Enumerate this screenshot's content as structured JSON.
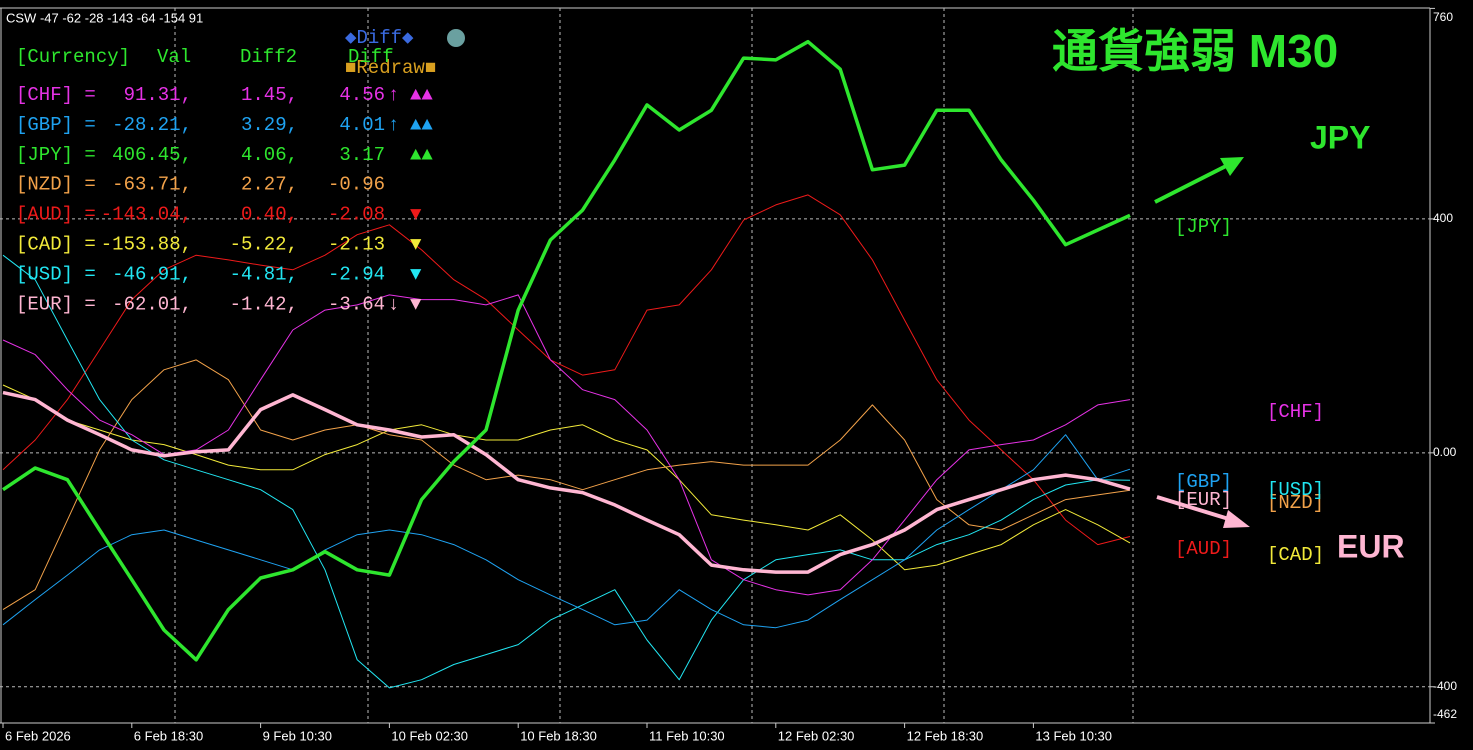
{
  "chart_data": {
    "type": "line",
    "title": "通貨強弱 M30",
    "header": "CSW -47 -62 -28 -143 -64 -154 91",
    "annotations": {
      "up": "JPY",
      "down": "EUR",
      "diff_button": "◆Diff◆",
      "redraw_button": "■Redraw■"
    },
    "panel": {
      "columns": [
        "[Currency]",
        "Val",
        "Diff2",
        "Diff"
      ],
      "rows": [
        {
          "name": "[CHF] =",
          "val": "91.31,",
          "diff2": "1.45,",
          "diff": "4.56",
          "arrow": "↑",
          "marks": "▲▲",
          "color": "#e632e6"
        },
        {
          "name": "[GBP] =",
          "val": "-28.21,",
          "diff2": "3.29,",
          "diff": "4.01",
          "arrow": "↑",
          "marks": "▲▲",
          "color": "#1fa3f2"
        },
        {
          "name": "[JPY] =",
          "val": "406.45,",
          "diff2": "4.06,",
          "diff": "3.17",
          "marks": "▲▲",
          "color": "#2ee62e"
        },
        {
          "name": "[NZD] =",
          "val": "-63.71,",
          "diff2": "2.27,",
          "diff": "-0.96",
          "color": "#f2a24a"
        },
        {
          "name": "[AUD] =",
          "val": "-143.04,",
          "diff2": "0.40,",
          "diff": "-2.08",
          "marks": "▼",
          "color": "#ee1a1a"
        },
        {
          "name": "[CAD] =",
          "val": "-153.88,",
          "diff2": "-5.22,",
          "diff": "-2.13",
          "marks": "▼",
          "color": "#f2ea3a"
        },
        {
          "name": "[USD] =",
          "val": "-46.91,",
          "diff2": "-4.81,",
          "diff": "-2.94",
          "marks": "▼",
          "color": "#22e6f2"
        },
        {
          "name": "[EUR] =",
          "val": "-62.01,",
          "diff2": "-1.42,",
          "diff": "-3.64",
          "arrow": "↓",
          "marks": "▼",
          "color": "#ffb6d2"
        }
      ]
    },
    "categories": [
      "6 Feb 2026",
      null,
      null,
      null,
      "6 Feb 18:30",
      null,
      null,
      null,
      "9 Feb 10:30",
      null,
      null,
      null,
      "10 Feb 02:30",
      null,
      null,
      null,
      "10 Feb 18:30",
      null,
      null,
      null,
      "11 Feb 10:30",
      null,
      null,
      null,
      "12 Feb 02:30",
      null,
      null,
      null,
      "12 Feb 18:30",
      null,
      null,
      null,
      "13 Feb 10:30",
      null,
      null,
      null
    ],
    "ylim": [
      -462,
      760
    ],
    "yticks": [
      760,
      400,
      {
        "value": 0,
        "label": "0.00"
      },
      -400,
      -462
    ],
    "grid": true,
    "series": [
      {
        "name": "[CHF]",
        "color": "#e632e6",
        "values": [
          193,
          168,
          108,
          56,
          31,
          -3,
          5,
          39,
          125,
          210,
          244,
          253,
          270,
          262,
          262,
          253,
          270,
          159,
          108,
          91,
          39,
          -46,
          -183,
          -217,
          -234,
          -243,
          -234,
          -183,
          -115,
          -46,
          5,
          14,
          22,
          48,
          82,
          91
        ]
      },
      {
        "name": "[GBP]",
        "color": "#1fa3f2",
        "values": [
          -294,
          -251,
          -209,
          -166,
          -140,
          -132,
          -149,
          -166,
          -183,
          -200,
          -166,
          -140,
          -132,
          -140,
          -157,
          -183,
          -217,
          -243,
          -268,
          -294,
          -286,
          -234,
          -268,
          -294,
          -299,
          -286,
          -251,
          -217,
          -183,
          -132,
          -97,
          -63,
          -29,
          31,
          -46,
          -28
        ]
      },
      {
        "name": "[JPY]",
        "color": "#2ee62e",
        "values": [
          -63,
          -26,
          -46,
          -132,
          -217,
          -303,
          -354,
          -268,
          -214,
          -200,
          -169,
          -200,
          -209,
          -80,
          -15,
          39,
          244,
          364,
          415,
          501,
          595,
          552,
          586,
          675,
          672,
          703,
          656,
          484,
          492,
          586,
          586,
          501,
          432,
          356,
          381,
          406
        ]
      },
      {
        "name": "[NZD]",
        "color": "#f2a24a",
        "values": [
          -268,
          -234,
          -115,
          5,
          91,
          142,
          159,
          125,
          39,
          22,
          39,
          48,
          31,
          22,
          -21,
          -46,
          -38,
          -46,
          -63,
          -46,
          -29,
          -21,
          -15,
          -21,
          -21,
          -21,
          22,
          82,
          22,
          -80,
          -123,
          -132,
          -106,
          -80,
          -72,
          -64
        ]
      },
      {
        "name": "[AUD]",
        "color": "#ee1a1a",
        "values": [
          -29,
          22,
          91,
          176,
          262,
          313,
          338,
          330,
          321,
          313,
          338,
          373,
          390,
          347,
          296,
          262,
          210,
          159,
          133,
          142,
          244,
          253,
          313,
          398,
          424,
          441,
          407,
          330,
          227,
          125,
          56,
          5,
          -46,
          -115,
          -157,
          -143
        ]
      },
      {
        "name": "[CAD]",
        "color": "#f2ea3a",
        "values": [
          116,
          91,
          56,
          39,
          22,
          14,
          -3,
          -21,
          -29,
          -29,
          -3,
          14,
          39,
          48,
          31,
          22,
          22,
          39,
          48,
          22,
          5,
          -46,
          -106,
          -115,
          -123,
          -132,
          -106,
          -149,
          -200,
          -192,
          -174,
          -157,
          -123,
          -97,
          -123,
          -154
        ]
      },
      {
        "name": "[USD]",
        "color": "#22e6f2",
        "values": [
          338,
          296,
          193,
          91,
          22,
          -12,
          -29,
          -46,
          -63,
          -97,
          -200,
          -354,
          -402,
          -388,
          -362,
          -345,
          -328,
          -286,
          -260,
          -234,
          -320,
          -388,
          -286,
          -217,
          -183,
          -174,
          -166,
          -183,
          -183,
          -157,
          -140,
          -115,
          -80,
          -55,
          -46,
          -47
        ]
      },
      {
        "name": "[EUR]",
        "color": "#ffb6d2",
        "values": [
          103,
          91,
          56,
          31,
          5,
          -5,
          2,
          5,
          74,
          99,
          74,
          48,
          39,
          27,
          31,
          -3,
          -46,
          -60,
          -68,
          -89,
          -115,
          -140,
          -192,
          -200,
          -204,
          -204,
          -174,
          -157,
          -132,
          -97,
          -80,
          -63,
          -46,
          -38,
          -46,
          -62
        ]
      }
    ]
  }
}
